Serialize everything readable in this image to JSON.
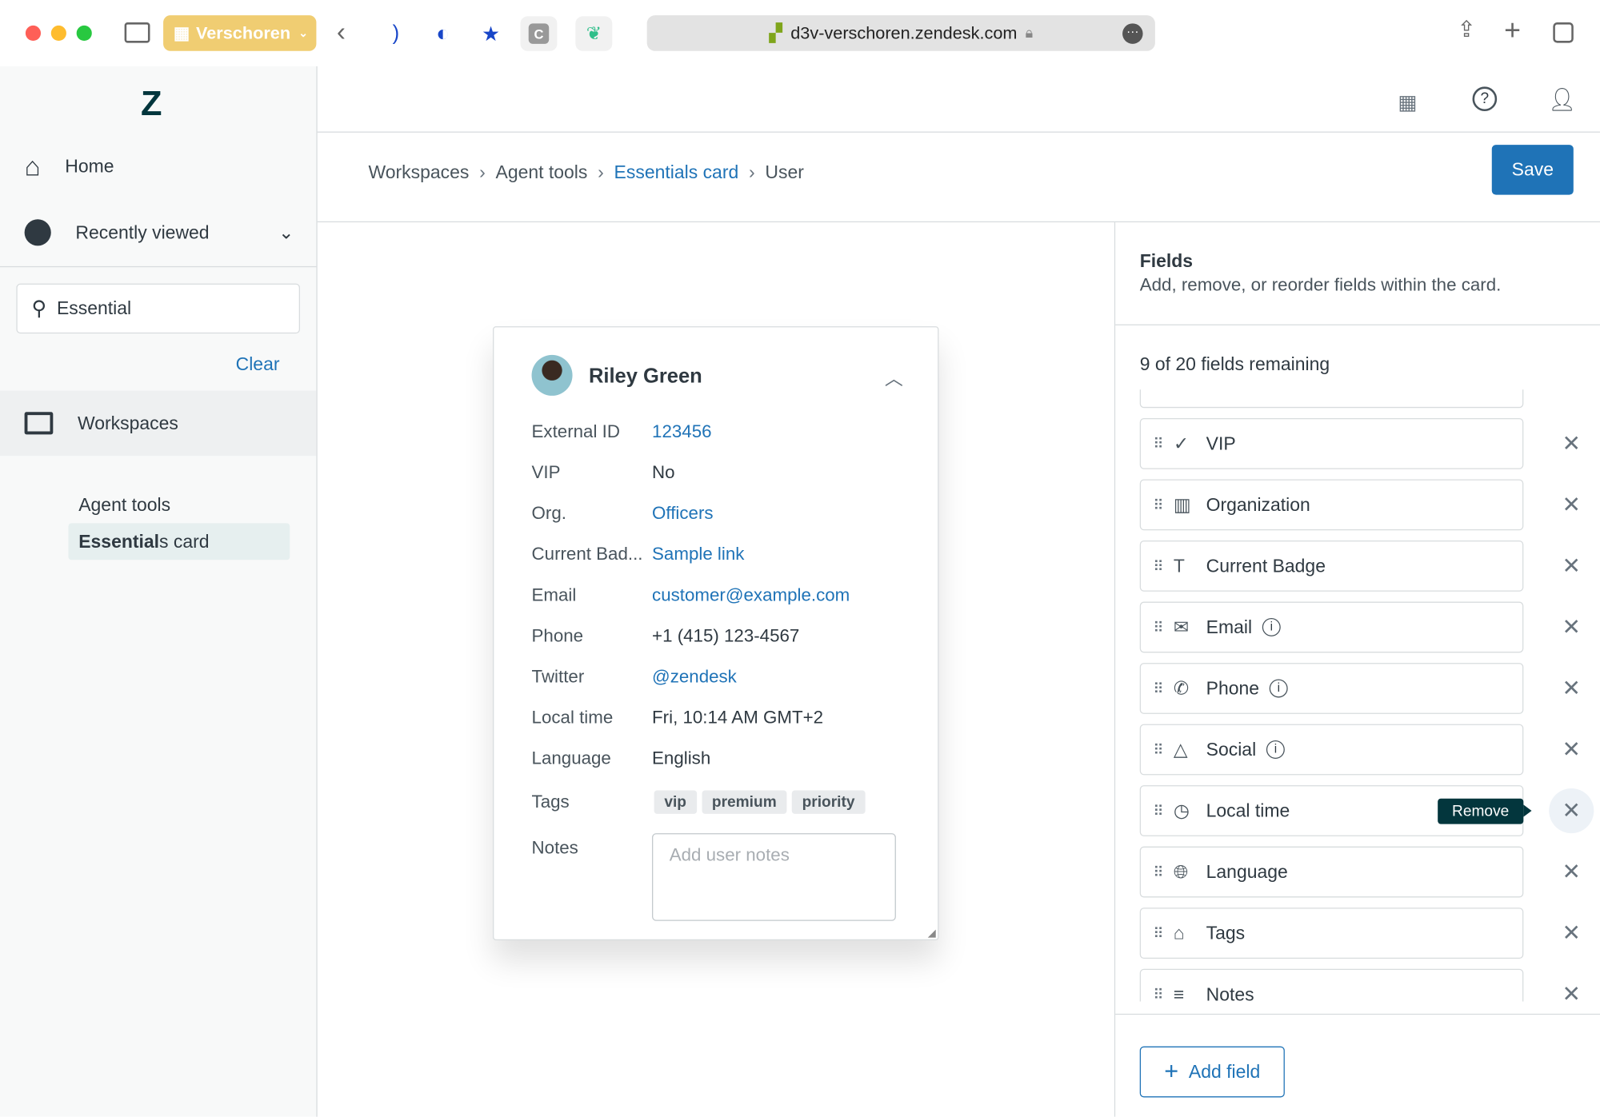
{
  "browser": {
    "profile": "Verschoren",
    "url": "d3v-verschoren.zendesk.com",
    "ext_c": "C"
  },
  "sidebar": {
    "home": "Home",
    "recent": "Recently viewed",
    "search_value": "Essential",
    "clear": "Clear",
    "workspaces": "Workspaces",
    "agent_tools": "Agent tools",
    "essentials_bold": "Essential",
    "essentials_rest": "s card"
  },
  "breadcrumb": [
    "Workspaces",
    "Agent tools",
    "Essentials card",
    "User"
  ],
  "save": "Save",
  "card": {
    "name": "Riley Green",
    "rows": [
      {
        "label": "External ID",
        "value": "123456",
        "link": true
      },
      {
        "label": "VIP",
        "value": "No",
        "link": false
      },
      {
        "label": "Org.",
        "value": "Officers",
        "link": true
      },
      {
        "label": "Current Bad...",
        "value": "Sample link",
        "link": true
      },
      {
        "label": "Email",
        "value": "customer@example.com",
        "link": true
      },
      {
        "label": "Phone",
        "value": "+1 (415) 123-4567",
        "link": false
      },
      {
        "label": "Twitter",
        "value": "@zendesk",
        "link": true
      },
      {
        "label": "Local time",
        "value": "Fri, 10:14 AM GMT+2",
        "link": false
      },
      {
        "label": "Language",
        "value": "English",
        "link": false
      }
    ],
    "tags_label": "Tags",
    "tags": [
      "vip",
      "premium",
      "priority"
    ],
    "notes_label": "Notes",
    "notes_placeholder": "Add user notes"
  },
  "panel": {
    "title": "Fields",
    "subtitle": "Add, remove, or reorder fields within the card.",
    "remaining": "9 of 20 fields remaining",
    "fields": [
      {
        "name": "VIP",
        "icon": "check-icon",
        "info": false
      },
      {
        "name": "Organization",
        "icon": "building-icon",
        "info": false
      },
      {
        "name": "Current Badge",
        "icon": "text-icon",
        "info": false
      },
      {
        "name": "Email",
        "icon": "envelope-icon",
        "info": true
      },
      {
        "name": "Phone",
        "icon": "phone-icon",
        "info": true
      },
      {
        "name": "Social",
        "icon": "shapes-icon",
        "info": true
      },
      {
        "name": "Local time",
        "icon": "clock-icon",
        "info": false
      },
      {
        "name": "Language",
        "icon": "globe-icon",
        "info": false
      },
      {
        "name": "Tags",
        "icon": "tag-icon",
        "info": false
      },
      {
        "name": "Notes",
        "icon": "lines-icon",
        "info": false
      }
    ],
    "tooltip": "Remove",
    "add_field": "Add field"
  },
  "colors": {
    "accent": "#1f73b7",
    "tooltip": "#03363d",
    "profile": "#f0cd72"
  }
}
